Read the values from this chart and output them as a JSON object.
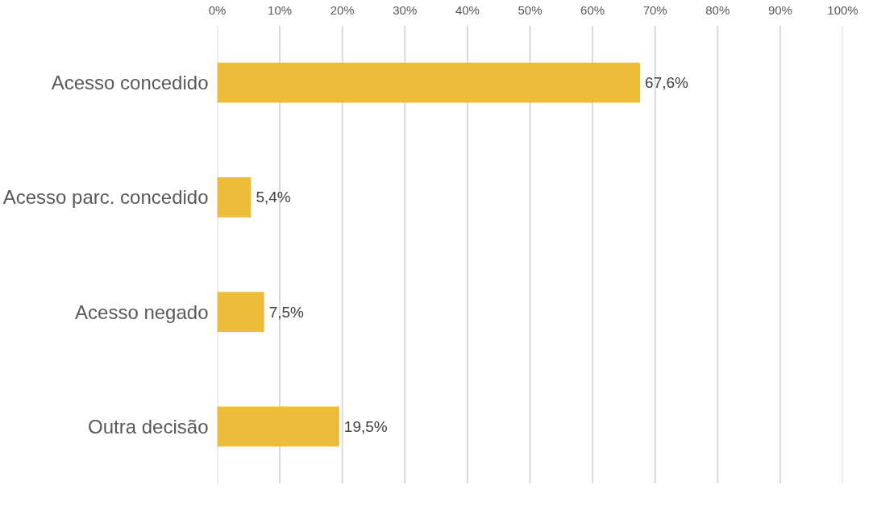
{
  "chart_data": {
    "type": "bar",
    "orientation": "horizontal",
    "categories": [
      "Acesso concedido",
      "Acesso parc. concedido",
      "Acesso negado",
      "Outra decisão"
    ],
    "values": [
      67.6,
      5.4,
      7.5,
      19.5
    ],
    "value_labels": [
      "67,6%",
      "5,4%",
      "7,5%",
      "19,5%"
    ],
    "color": "#edbd3a",
    "xlim": [
      0,
      100
    ],
    "xticks": [
      {
        "value": 0,
        "label": "0%"
      },
      {
        "value": 10,
        "label": "10%"
      },
      {
        "value": 20,
        "label": "20%"
      },
      {
        "value": 30,
        "label": "30%"
      },
      {
        "value": 40,
        "label": "40%"
      },
      {
        "value": 50,
        "label": "50%"
      },
      {
        "value": 60,
        "label": "60%"
      },
      {
        "value": 70,
        "label": "70%"
      },
      {
        "value": 80,
        "label": "80%"
      },
      {
        "value": 90,
        "label": "90%"
      },
      {
        "value": 100,
        "label": "100%"
      }
    ],
    "grid": "x"
  }
}
